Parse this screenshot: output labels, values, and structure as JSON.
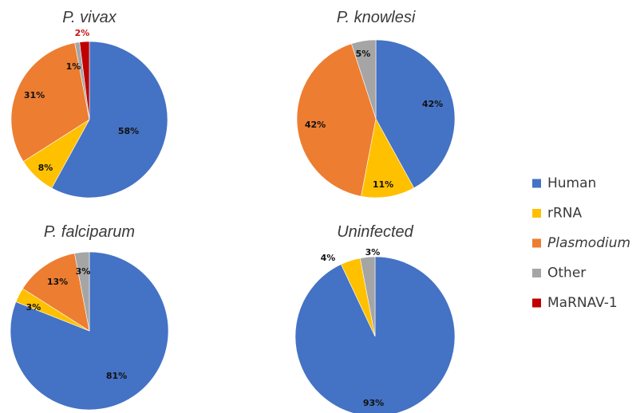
{
  "legend": [
    {
      "name": "Human",
      "color": "#4472c4",
      "italic": false
    },
    {
      "name": "rRNA",
      "color": "#ffc000",
      "italic": false
    },
    {
      "name": "Plasmodium",
      "color": "#ed7d31",
      "italic": true
    },
    {
      "name": "Other",
      "color": "#a5a5a5",
      "italic": false
    },
    {
      "name": "MaRNAV-1",
      "color": "#c00000",
      "italic": false
    }
  ],
  "chart_data": [
    {
      "type": "pie",
      "title": "P. vivax",
      "slices": [
        {
          "category": "Human",
          "value": 58,
          "label": "58%"
        },
        {
          "category": "rRNA",
          "value": 8,
          "label": "8%"
        },
        {
          "category": "Plasmodium",
          "value": 31,
          "label": "31%"
        },
        {
          "category": "Other",
          "value": 1,
          "label": "1%"
        },
        {
          "category": "MaRNAV-1",
          "value": 2,
          "label": "2%"
        }
      ]
    },
    {
      "type": "pie",
      "title": "P. knowlesi",
      "slices": [
        {
          "category": "Human",
          "value": 42,
          "label": "42%"
        },
        {
          "category": "rRNA",
          "value": 11,
          "label": "11%"
        },
        {
          "category": "Plasmodium",
          "value": 42,
          "label": "42%"
        },
        {
          "category": "Other",
          "value": 5,
          "label": "5%"
        }
      ]
    },
    {
      "type": "pie",
      "title": "P. falciparum",
      "slices": [
        {
          "category": "Human",
          "value": 81,
          "label": "81%"
        },
        {
          "category": "rRNA",
          "value": 3,
          "label": "3%"
        },
        {
          "category": "Plasmodium",
          "value": 13,
          "label": "13%"
        },
        {
          "category": "Other",
          "value": 3,
          "label": "3%"
        }
      ]
    },
    {
      "type": "pie",
      "title": "Uninfected",
      "slices": [
        {
          "category": "Human",
          "value": 93,
          "label": "93%"
        },
        {
          "category": "rRNA",
          "value": 4,
          "label": "4%"
        },
        {
          "category": "Other",
          "value": 3,
          "label": "3%"
        }
      ]
    }
  ]
}
